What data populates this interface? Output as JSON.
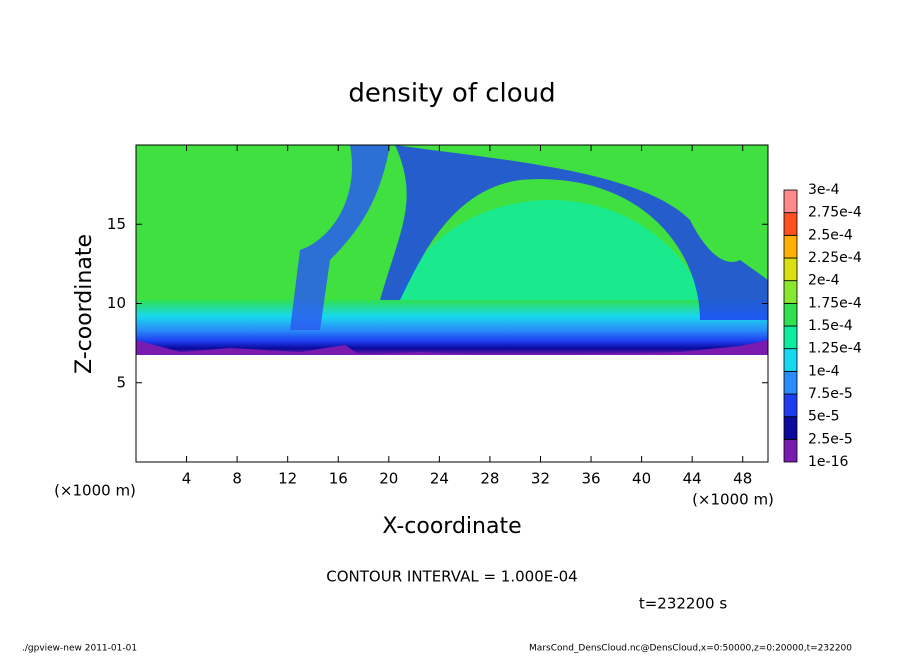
{
  "chart_data": {
    "type": "contour",
    "title": "density of cloud",
    "xlabel": "X-coordinate",
    "ylabel": "Z-coordinate",
    "xunit": "(×1000 m)",
    "xunit2": "(×1000 m)",
    "xlim": [
      0,
      50
    ],
    "ylim": [
      0,
      20
    ],
    "xticks": [
      4,
      8,
      12,
      16,
      20,
      24,
      28,
      32,
      36,
      40,
      44,
      48
    ],
    "yticks": [
      5,
      10,
      15
    ],
    "levels": [
      {
        "value": 1e-16,
        "label": "1e-16"
      },
      {
        "value": 2.5e-05,
        "label": "2.5e-5"
      },
      {
        "value": 5e-05,
        "label": "5e-5"
      },
      {
        "value": 7.5e-05,
        "label": "7.5e-5"
      },
      {
        "value": 0.0001,
        "label": "1e-4"
      },
      {
        "value": 0.000125,
        "label": "1.25e-4"
      },
      {
        "value": 0.00015,
        "label": "1.5e-4"
      },
      {
        "value": 0.000175,
        "label": "1.75e-4"
      },
      {
        "value": 0.0002,
        "label": "2e-4"
      },
      {
        "value": 0.000225,
        "label": "2.25e-4"
      },
      {
        "value": 0.00025,
        "label": "2.5e-4"
      },
      {
        "value": 0.000275,
        "label": "2.75e-4"
      },
      {
        "value": 0.0003,
        "label": "3e-4"
      }
    ],
    "colors": [
      "#7a1bb0",
      "#0a0a9c",
      "#1e3cf0",
      "#2a8cf8",
      "#18d8f0",
      "#10eca0",
      "#30e050",
      "#88e830",
      "#d8e010",
      "#ffb000",
      "#ff5020",
      "#ff8a8a"
    ],
    "contour_interval": "CONTOUR INTERVAL = 1.000E-04",
    "time": "t=232200 s",
    "footer_left": "./gpview-new  2011-01-01",
    "footer_right": "MarsCond_DensCloud.nc@DensCloud,x=0:50000,z=0:20000,t=232200"
  }
}
